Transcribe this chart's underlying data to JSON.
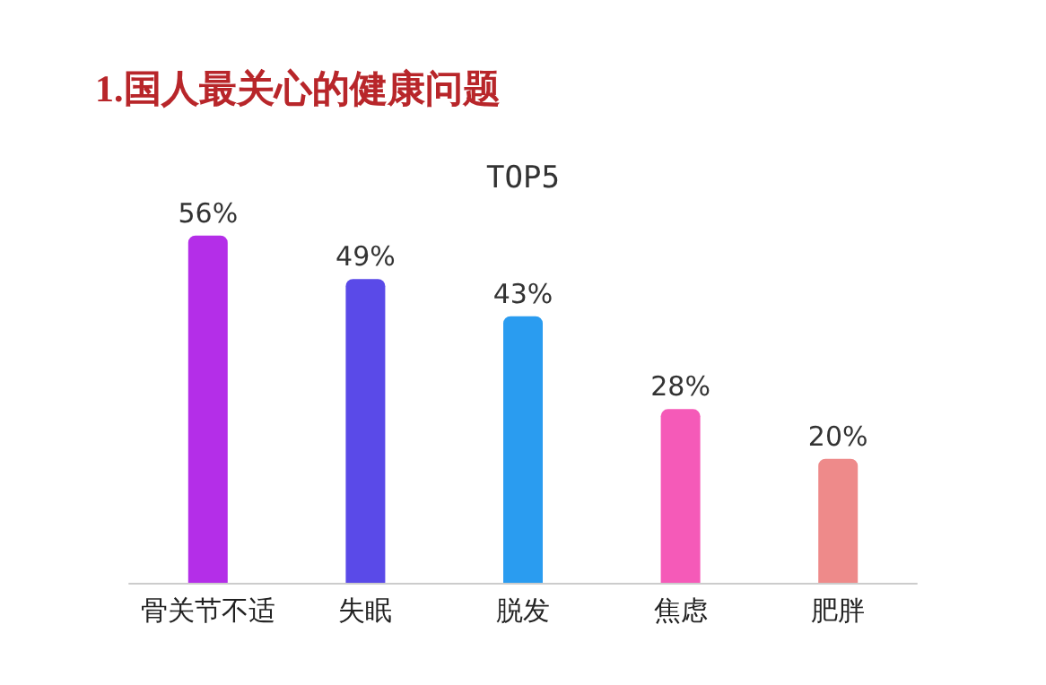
{
  "chart_data": {
    "type": "bar",
    "title": "1.国人最关心的健康问题",
    "subtitle": "TOP5",
    "categories": [
      "骨关节不适",
      "失眠",
      "脱发",
      "焦虑",
      "肥胖"
    ],
    "values": [
      56,
      49,
      43,
      28,
      20
    ],
    "colors": [
      "#b42ee8",
      "#5a4ae8",
      "#2a9cf0",
      "#f55ab8",
      "#ee8a8a"
    ],
    "data_labels": true,
    "value_labels": [
      "56%",
      "49%",
      "43%",
      "28%",
      "20%"
    ]
  }
}
